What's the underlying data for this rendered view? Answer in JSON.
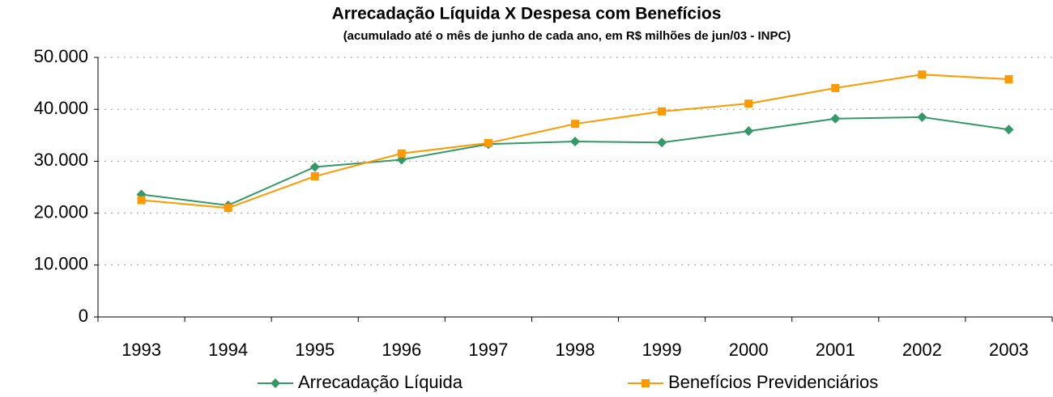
{
  "chart_data": {
    "type": "line",
    "title": "Arrecadação Líquida X Despesa com Benefícios",
    "subtitle": "(acumulado até o mês de junho de cada ano, em R$ milhões de jun/03 - INPC)",
    "categories": [
      "1993",
      "1994",
      "1995",
      "1996",
      "1997",
      "1998",
      "1999",
      "2000",
      "2001",
      "2002",
      "2003"
    ],
    "series": [
      {
        "name": "Arrecadação Líquida",
        "color": "#339966",
        "marker": "diamond",
        "values": [
          23600,
          21500,
          28900,
          30300,
          33300,
          33800,
          33600,
          35800,
          38200,
          38500,
          36100
        ]
      },
      {
        "name": "Benefícios Previdenciários",
        "color": "#ff9900",
        "marker": "square",
        "values": [
          22500,
          21000,
          27100,
          31500,
          33500,
          37200,
          39600,
          41100,
          44100,
          46700,
          45800
        ]
      }
    ],
    "ylim": [
      0,
      50000
    ],
    "yticks": [
      0,
      {
        "value": 10000,
        "label": "10.000"
      },
      {
        "value": 20000,
        "label": "20.000"
      },
      {
        "value": 30000,
        "label": "30.000"
      },
      {
        "value": 40000,
        "label": "40.000"
      },
      {
        "value": 50000,
        "label": "50.000"
      }
    ],
    "grid": true,
    "legend": "bottom"
  }
}
